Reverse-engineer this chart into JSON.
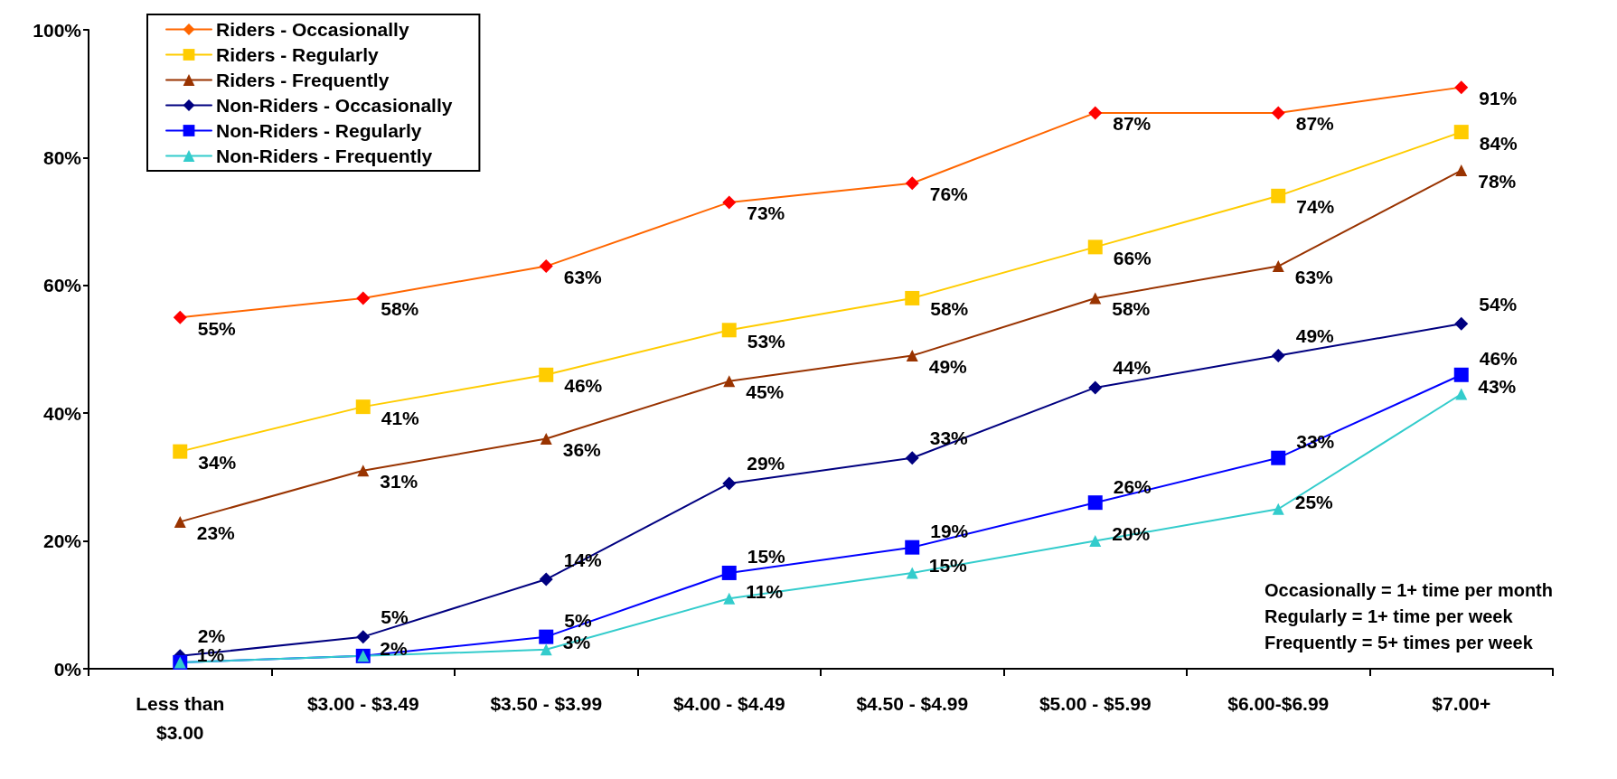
{
  "chart_data": {
    "type": "line",
    "categories": [
      "Less than\n$3.00",
      "$3.00 - $3.49",
      "$3.50 - $3.99",
      "$4.00 - $4.49",
      "$4.50 - $4.99",
      "$5.00 - $5.99",
      "$6.00-$6.99",
      "$7.00+"
    ],
    "series": [
      {
        "name": "Riders - Occasionally",
        "color": "#ff6600",
        "colors": [
          "#ff0000",
          "#ff0000",
          "#ff0000",
          "#ff0000",
          "#ff0000",
          "#ff0000",
          "#ff0000",
          "#ff0000"
        ],
        "marker": "diamond",
        "values": [
          55,
          58,
          63,
          73,
          76,
          87,
          87,
          91
        ],
        "value_labels": [
          "55%",
          "58%",
          "63%",
          "73%",
          "76%",
          "87%",
          "87%",
          "91%"
        ]
      },
      {
        "name": "Riders - Regularly",
        "color": "#ffcc00",
        "marker": "square",
        "values": [
          34,
          41,
          46,
          53,
          58,
          66,
          74,
          84
        ],
        "value_labels": [
          "34%",
          "41%",
          "46%",
          "53%",
          "58%",
          "66%",
          "74%",
          "84%"
        ]
      },
      {
        "name": "Riders - Frequently",
        "color": "#993300",
        "marker": "triangle",
        "values": [
          23,
          31,
          36,
          45,
          49,
          58,
          63,
          78
        ],
        "value_labels": [
          "23%",
          "31%",
          "36%",
          "45%",
          "49%",
          "58%",
          "63%",
          "78%"
        ]
      },
      {
        "name": "Non-Riders - Occasionally",
        "color": "#000080",
        "marker": "diamond",
        "values": [
          2,
          5,
          14,
          29,
          33,
          44,
          49,
          54
        ],
        "value_labels": [
          "2%",
          "5%",
          "14%",
          "29%",
          "33%",
          "44%",
          "49%",
          "54%"
        ]
      },
      {
        "name": "Non-Riders - Regularly",
        "color": "#0000ff",
        "marker": "square",
        "values": [
          1,
          2,
          5,
          15,
          19,
          26,
          33,
          46
        ],
        "value_labels": [
          null,
          null,
          "5%",
          "15%",
          "19%",
          "26%",
          "33%",
          "46%"
        ]
      },
      {
        "name": "Non-Riders - Frequently",
        "color": "#33cccc",
        "marker": "triangle",
        "values": [
          1,
          2,
          3,
          11,
          15,
          20,
          25,
          43
        ],
        "value_labels": [
          "1%",
          "2%",
          "3%",
          "11%",
          "15%",
          "20%",
          "25%",
          "43%"
        ]
      }
    ],
    "ylim": [
      0,
      100
    ],
    "yticks": [
      {
        "value": 0,
        "label": "0%"
      },
      {
        "value": 20,
        "label": "20%"
      },
      {
        "value": 40,
        "label": "40%"
      },
      {
        "value": 60,
        "label": "60%"
      },
      {
        "value": 80,
        "label": "80%"
      },
      {
        "value": 100,
        "label": "100%"
      }
    ],
    "grid": false,
    "legend": "top left",
    "line_style": "solid",
    "annotations": [
      "Occasionally = 1+ time per month\nRegularly = 1+ time per week\nFrequently = 5+ times per week"
    ]
  }
}
